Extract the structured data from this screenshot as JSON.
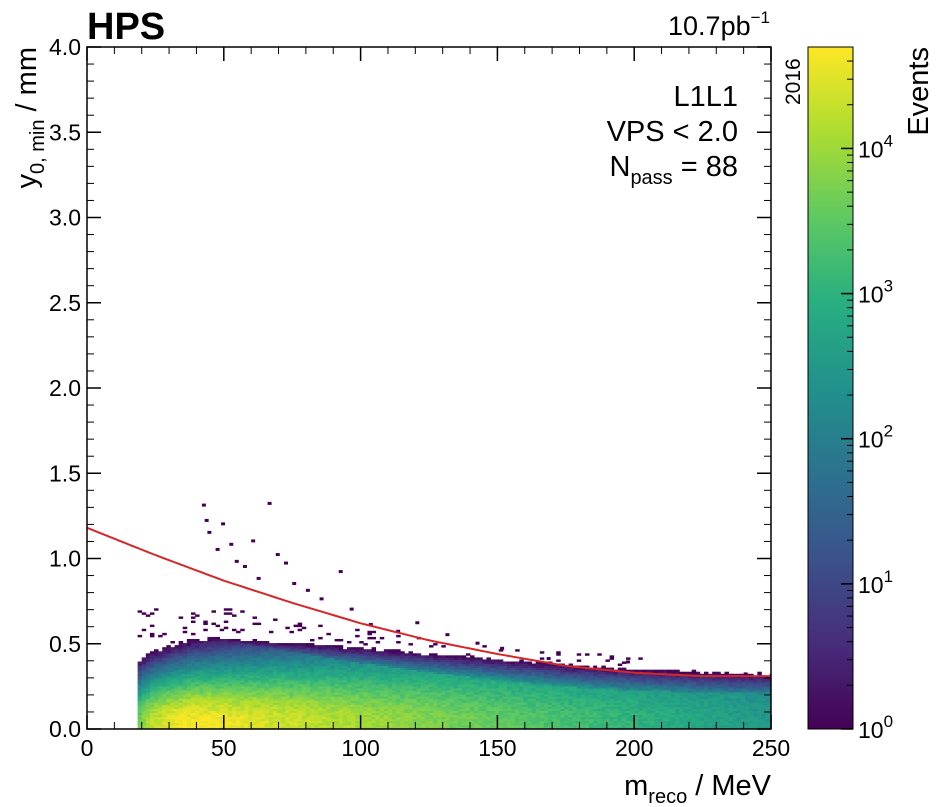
{
  "chart_data": {
    "type": "heatmap",
    "experiment_label": "HPS",
    "luminosity": {
      "value": "10.7pb",
      "exponent": "−1"
    },
    "year": "2016",
    "xlabel": {
      "main": "m",
      "sub": "reco",
      "rest": " / MeV"
    },
    "ylabel": {
      "main": "y",
      "sub": "0, min",
      "rest": " / mm"
    },
    "xlim": [
      0,
      250
    ],
    "ylim": [
      0,
      4
    ],
    "x_ticks": [
      "0",
      "50",
      "100",
      "150",
      "200",
      "250"
    ],
    "y_ticks": [
      "0.0",
      "0.5",
      "1.0",
      "1.5",
      "2.0",
      "2.5",
      "3.0",
      "3.5",
      "4.0"
    ],
    "annotations": {
      "selection": "L1L1",
      "cut": "VPS < 2.0",
      "npass_symbol": "N",
      "npass_sub": "pass",
      "npass_value": " = 88"
    },
    "colorbar": {
      "label": "Events",
      "scale": "log",
      "range": [
        1,
        50000
      ],
      "ticks": [
        {
          "base": "10",
          "exp": "0",
          "value": 1
        },
        {
          "base": "10",
          "exp": "1",
          "value": 10
        },
        {
          "base": "10",
          "exp": "2",
          "value": 100
        },
        {
          "base": "10",
          "exp": "3",
          "value": 1000
        },
        {
          "base": "10",
          "exp": "4",
          "value": 10000
        }
      ],
      "colormap": [
        "#440154",
        "#472d7b",
        "#3b528b",
        "#2c728e",
        "#21918c",
        "#28ae80",
        "#5ec962",
        "#addc30",
        "#fde725"
      ]
    },
    "cut_curve": {
      "name": "y0 cut",
      "color": "#d62728",
      "x": [
        0,
        25,
        50,
        75,
        100,
        125,
        150,
        175,
        200,
        225,
        250
      ],
      "y": [
        1.18,
        1.02,
        0.87,
        0.74,
        0.62,
        0.52,
        0.44,
        0.37,
        0.33,
        0.31,
        0.31
      ]
    },
    "distribution": {
      "description_series": "event density peak",
      "x_threshold": 17,
      "peak_mass": 38,
      "peak_y0": 0.05,
      "max_events": 50000
    },
    "outlier_points": {
      "x": [
        42,
        43,
        44,
        47,
        49,
        52,
        54,
        57,
        60,
        62,
        66,
        69,
        72,
        75,
        80,
        85,
        92,
        96,
        103,
        113,
        120,
        131,
        142,
        151,
        168,
        185,
        197,
        207,
        225,
        240
      ],
      "y": [
        1.31,
        1.22,
        1.15,
        1.05,
        1.2,
        1.08,
        0.98,
        0.95,
        1.1,
        0.88,
        1.32,
        1.02,
        0.97,
        0.85,
        0.81,
        0.76,
        0.92,
        0.7,
        0.61,
        0.57,
        0.62,
        0.55,
        0.5,
        0.47,
        0.41,
        0.36,
        0.39,
        0.33,
        0.31,
        0.32
      ]
    }
  }
}
